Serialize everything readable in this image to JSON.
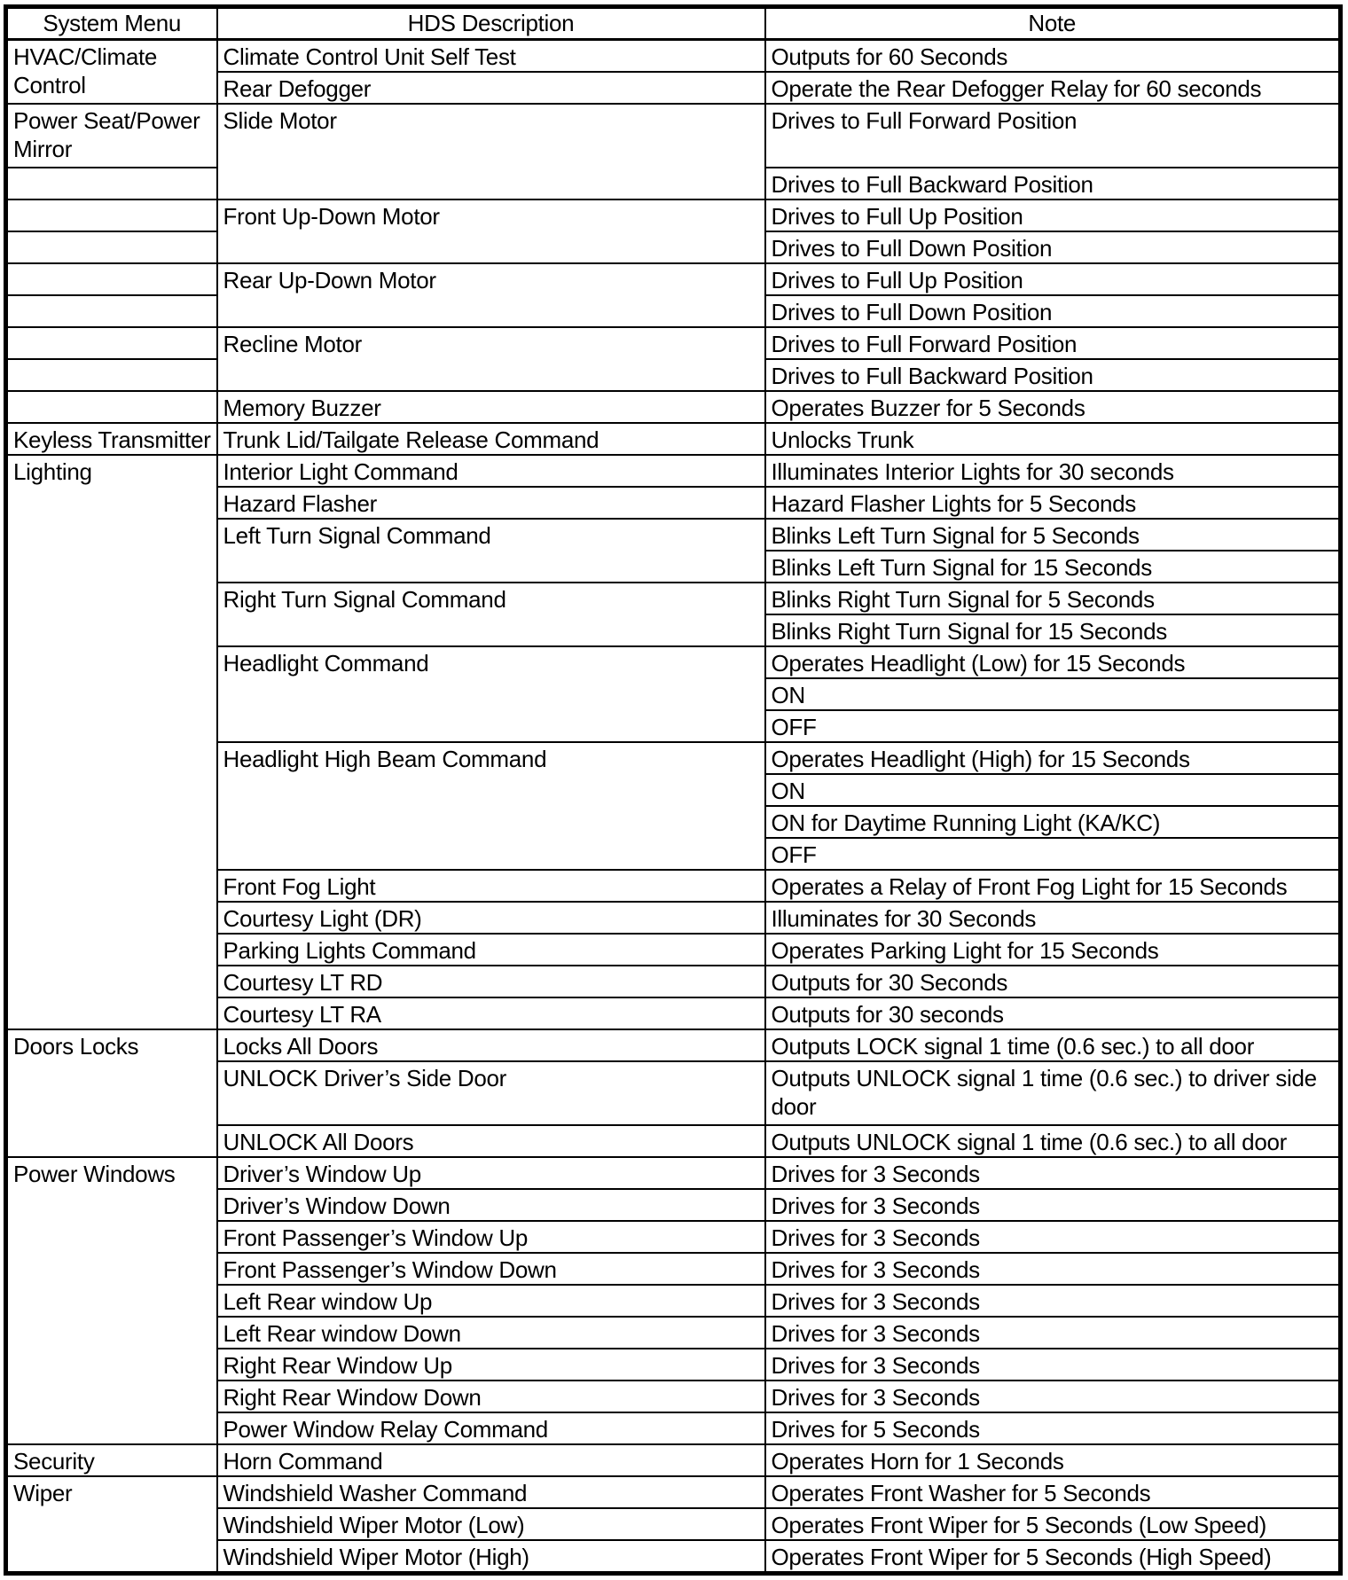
{
  "document": {
    "type": "diagnostic-function-test-table",
    "colors": {
      "ink": "#000000",
      "paper": "#ffffff"
    },
    "table": {
      "headers": [
        {
          "key": "system",
          "label": "System Menu"
        },
        {
          "key": "desc",
          "label": "HDS Description"
        },
        {
          "key": "note",
          "label": "Note"
        }
      ],
      "rows": [
        {
          "s": "HVAC/Climate Control",
          "sr": 2,
          "d": "Climate Control Unit Self Test",
          "n": "Outputs for 60 Seconds"
        },
        {
          "d": "Rear Defogger",
          "n": "Operate the Rear Defogger Relay for 60 seconds"
        },
        {
          "tall": true,
          "s": "Power Seat/Power Mirror",
          "d": "Slide Motor",
          "dr": 2,
          "n": "Drives to Full Forward Position"
        },
        {
          "s": "",
          "n": "Drives to Full Backward Position"
        },
        {
          "s": "",
          "d": "Front Up-Down Motor",
          "dr": 2,
          "n": "Drives to Full Up Position"
        },
        {
          "s": "",
          "n": "Drives to Full Down Position"
        },
        {
          "s": "",
          "d": "Rear Up-Down Motor",
          "dr": 2,
          "n": "Drives to Full Up Position"
        },
        {
          "s": "",
          "n": "Drives to Full Down Position"
        },
        {
          "s": "",
          "d": "Recline Motor",
          "dr": 2,
          "n": "Drives to Full Forward Position"
        },
        {
          "s": "",
          "n": "Drives to Full Backward Position"
        },
        {
          "s": "",
          "d": "Memory Buzzer",
          "n": "Operates Buzzer for 5 Seconds"
        },
        {
          "s": "Keyless Transmitter",
          "d": "Trunk Lid/Tailgate Release Command",
          "n": "Unlocks Trunk"
        },
        {
          "s": "Lighting",
          "sr": 18,
          "d": "Interior Light Command",
          "n": "Illuminates Interior Lights for 30 seconds"
        },
        {
          "d": "Hazard Flasher",
          "n": "Hazard Flasher Lights for 5 Seconds"
        },
        {
          "d": "Left Turn Signal Command",
          "dr": 2,
          "n": "Blinks Left Turn Signal for 5 Seconds"
        },
        {
          "n": "Blinks Left Turn Signal for 15 Seconds"
        },
        {
          "d": "Right Turn Signal Command",
          "dr": 2,
          "n": "Blinks Right Turn Signal for 5 Seconds"
        },
        {
          "n": "Blinks Right Turn Signal for 15 Seconds"
        },
        {
          "d": "Headlight Command",
          "dr": 3,
          "n": "Operates Headlight (Low) for 15 Seconds"
        },
        {
          "n": "ON"
        },
        {
          "n": "OFF"
        },
        {
          "d": "Headlight High Beam Command",
          "dr": 4,
          "n": "Operates Headlight (High) for 15 Seconds"
        },
        {
          "n": "ON"
        },
        {
          "n": "ON for Daytime Running Light (KA/KC)"
        },
        {
          "n": "OFF"
        },
        {
          "d": "Front Fog Light",
          "n": "Operates a Relay of Front Fog Light for 15 Seconds"
        },
        {
          "d": "Courtesy Light (DR)",
          "n": "Illuminates for 30 Seconds"
        },
        {
          "d": "Parking Lights Command",
          "n": "Operates Parking Light for 15 Seconds"
        },
        {
          "d": "Courtesy LT RD",
          "n": "Outputs for 30 Seconds"
        },
        {
          "d": "Courtesy LT RA",
          "n": "Outputs for 30 seconds"
        },
        {
          "s": "Doors Locks",
          "sr": 3,
          "d": "Locks All Doors",
          "n": "Outputs LOCK signal 1 time (0.6 sec.) to all door"
        },
        {
          "tall": true,
          "d": "UNLOCK Driver’s Side Door",
          "n": "Outputs UNLOCK signal 1 time (0.6 sec.) to driver side door"
        },
        {
          "d": "UNLOCK All Doors",
          "n": "Outputs UNLOCK signal 1 time (0.6 sec.) to all door"
        },
        {
          "s": "Power Windows",
          "sr": 9,
          "d": "Driver’s Window Up",
          "n": "Drives for 3 Seconds"
        },
        {
          "d": "Driver’s Window Down",
          "n": "Drives for 3 Seconds"
        },
        {
          "d": "Front Passenger’s Window Up",
          "n": "Drives for 3 Seconds"
        },
        {
          "d": "Front Passenger’s Window Down",
          "n": "Drives for 3 Seconds"
        },
        {
          "d": "Left Rear window Up",
          "n": "Drives for 3 Seconds"
        },
        {
          "d": "Left Rear window Down",
          "n": "Drives for 3 Seconds"
        },
        {
          "d": "Right Rear Window Up",
          "n": "Drives for 3 Seconds"
        },
        {
          "d": "Right Rear Window Down",
          "n": "Drives for 3 Seconds"
        },
        {
          "d": "Power Window Relay Command",
          "n": "Drives for 5 Seconds"
        },
        {
          "s": "Security",
          "d": "Horn Command",
          "n": "Operates Horn for 1 Seconds"
        },
        {
          "s": "Wiper",
          "sr": 3,
          "d": "Windshield Washer Command",
          "n": "Operates Front Washer for 5 Seconds"
        },
        {
          "d": "Windshield Wiper Motor (Low)",
          "n": "Operates Front Wiper for 5 Seconds (Low Speed)"
        },
        {
          "d": "Windshield Wiper Motor (High)",
          "n": "Operates Front Wiper for 5 Seconds (High Speed)"
        }
      ]
    }
  }
}
